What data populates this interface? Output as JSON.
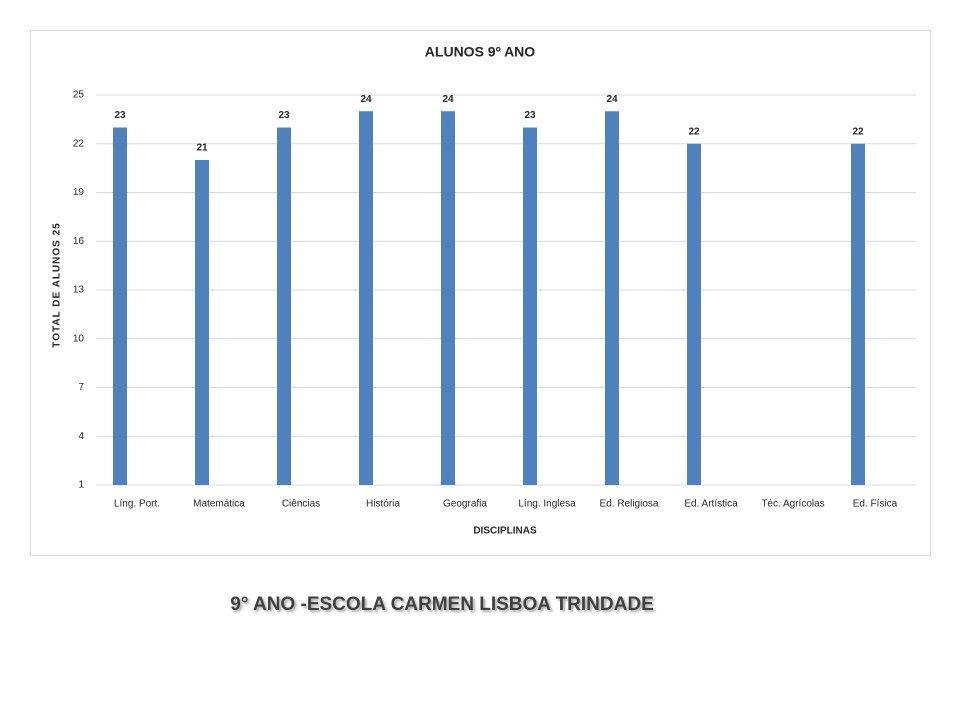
{
  "chart_data": {
    "type": "bar",
    "title": "ALUNOS 9º ANO",
    "x_label": "DISCIPLINAS",
    "y_label": "TOTAL DE ALUNOS 25",
    "categories": [
      "Líng. Port.",
      "Matemática",
      "Ciências",
      "História",
      "Geografia",
      "Líng. Inglesa",
      "Ed. Religiosa",
      "Ed. Artística",
      "Téc. Agrícolas",
      "Ed. Física"
    ],
    "values": [
      23,
      21,
      23,
      24,
      24,
      23,
      24,
      22,
      null,
      22
    ],
    "color": "#4f81bd",
    "ylim": [
      1,
      25
    ],
    "yticks": [
      1,
      4,
      7,
      10,
      13,
      16,
      19,
      22,
      25
    ],
    "grid": true
  },
  "caption": "9° ANO  -ESCOLA CARMEN  LISBOA TRINDADE"
}
